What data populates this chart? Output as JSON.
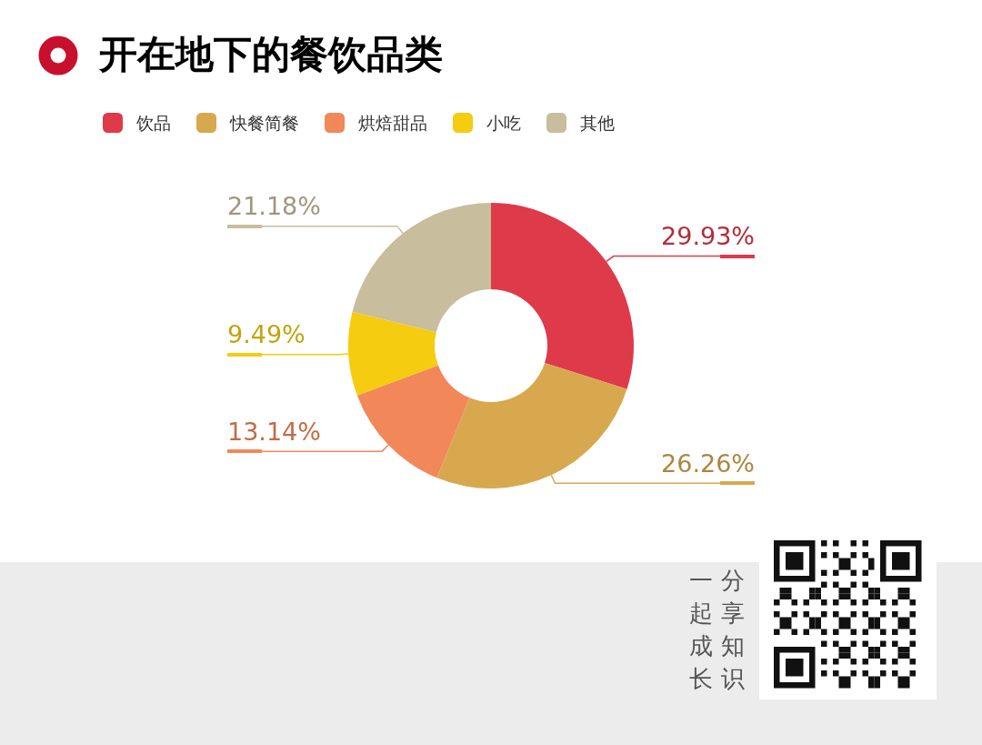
{
  "chart_data": {
    "type": "donut",
    "title": "开在地下的餐饮品类",
    "categories": [
      "饮品",
      "快餐简餐",
      "烘焙甜品",
      "小吃",
      "其他"
    ],
    "values": [
      29.93,
      26.26,
      13.14,
      9.49,
      21.18
    ],
    "value_labels": [
      "29.93%",
      "26.26%",
      "13.14%",
      "9.49%",
      "21.18%"
    ],
    "colors": [
      "#de3a4a",
      "#d8a84e",
      "#f2875a",
      "#f5cc10",
      "#c8bd9c"
    ],
    "legend": "top left",
    "annotations": [
      "一起成长",
      "分享知识"
    ]
  }
}
